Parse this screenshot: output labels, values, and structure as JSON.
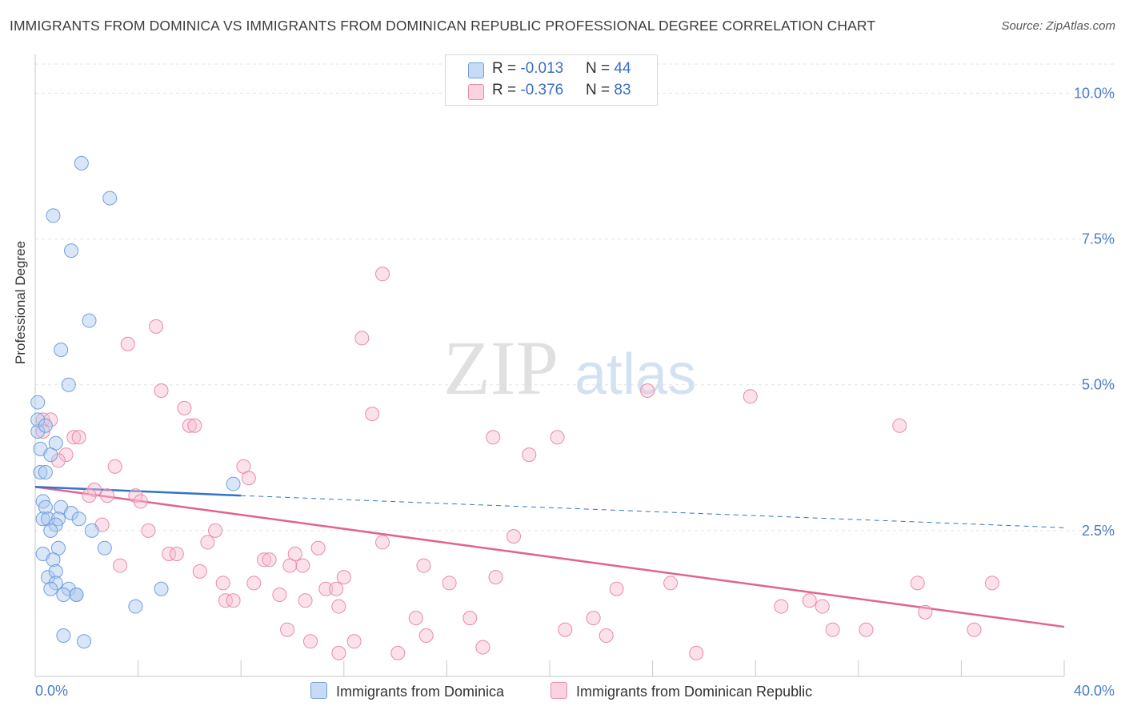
{
  "title": "IMMIGRANTS FROM DOMINICA VS IMMIGRANTS FROM DOMINICAN REPUBLIC PROFESSIONAL DEGREE CORRELATION CHART",
  "source": "Source: ZipAtlas.com",
  "watermark": {
    "zip": "ZIP",
    "atlas": "atlas"
  },
  "colors": {
    "blue_fill": "#aac8f0",
    "blue_stroke": "#6f9fdc",
    "blue_line": "#3472c9",
    "pink_fill": "#f6bfd0",
    "pink_stroke": "#e98aa8",
    "pink_line": "#e2638f",
    "axis_label": "#4a7cc7",
    "grid": "#e4e4e4"
  },
  "legend": {
    "rows": [
      {
        "r_label": "R = ",
        "r_value": "-0.013",
        "n_label": "N = ",
        "n_value": "44"
      },
      {
        "r_label": "R = ",
        "r_value": "-0.376",
        "n_label": "N = ",
        "n_value": "83"
      }
    ]
  },
  "chart_data": {
    "type": "scatter",
    "title": "IMMIGRANTS FROM DOMINICA VS IMMIGRANTS FROM DOMINICAN REPUBLIC PROFESSIONAL DEGREE CORRELATION CHART",
    "xlabel": "",
    "ylabel": "Professional Degree",
    "xlim": [
      0,
      40
    ],
    "ylim": [
      0,
      10.5
    ],
    "x_tick_labels": [
      "0.0%",
      "40.0%"
    ],
    "y_ticks": [
      2.5,
      5.0,
      7.5,
      10.0
    ],
    "y_tick_labels": [
      "2.5%",
      "5.0%",
      "7.5%",
      "10.0%"
    ],
    "grid": true,
    "legend_position": "top-center",
    "series": [
      {
        "name": "Immigrants from Dominica",
        "color": "#aac8f0",
        "points": [
          [
            1.8,
            8.8
          ],
          [
            2.9,
            8.2
          ],
          [
            0.7,
            7.9
          ],
          [
            1.4,
            7.3
          ],
          [
            2.1,
            6.1
          ],
          [
            1.0,
            5.6
          ],
          [
            1.3,
            5.0
          ],
          [
            0.1,
            4.7
          ],
          [
            0.1,
            4.2
          ],
          [
            0.1,
            4.4
          ],
          [
            0.2,
            3.9
          ],
          [
            0.8,
            4.0
          ],
          [
            0.6,
            3.8
          ],
          [
            0.2,
            3.5
          ],
          [
            0.4,
            3.5
          ],
          [
            7.7,
            3.3
          ],
          [
            0.3,
            3.0
          ],
          [
            0.4,
            2.9
          ],
          [
            1.0,
            2.9
          ],
          [
            1.4,
            2.8
          ],
          [
            0.3,
            2.7
          ],
          [
            0.5,
            2.7
          ],
          [
            0.9,
            2.7
          ],
          [
            1.7,
            2.7
          ],
          [
            0.8,
            2.6
          ],
          [
            2.2,
            2.5
          ],
          [
            0.6,
            2.5
          ],
          [
            2.7,
            2.2
          ],
          [
            0.9,
            2.2
          ],
          [
            0.3,
            2.1
          ],
          [
            0.7,
            2.0
          ],
          [
            0.5,
            1.7
          ],
          [
            0.8,
            1.8
          ],
          [
            0.8,
            1.6
          ],
          [
            0.6,
            1.5
          ],
          [
            1.3,
            1.5
          ],
          [
            1.6,
            1.4
          ],
          [
            1.1,
            1.4
          ],
          [
            4.9,
            1.5
          ],
          [
            1.6,
            1.4
          ],
          [
            3.9,
            1.2
          ],
          [
            1.1,
            0.7
          ],
          [
            1.9,
            0.6
          ],
          [
            0.4,
            4.3
          ]
        ]
      },
      {
        "name": "Immigrants from Dominican Republic",
        "color": "#f6bfd0",
        "points": [
          [
            13.5,
            6.9
          ],
          [
            4.7,
            6.0
          ],
          [
            12.7,
            5.8
          ],
          [
            3.6,
            5.7
          ],
          [
            4.9,
            4.9
          ],
          [
            23.8,
            4.9
          ],
          [
            27.8,
            4.8
          ],
          [
            5.8,
            4.6
          ],
          [
            0.3,
            4.4
          ],
          [
            0.6,
            4.4
          ],
          [
            13.1,
            4.5
          ],
          [
            6.0,
            4.3
          ],
          [
            6.2,
            4.3
          ],
          [
            33.6,
            4.3
          ],
          [
            0.3,
            4.2
          ],
          [
            1.5,
            4.1
          ],
          [
            1.7,
            4.1
          ],
          [
            17.8,
            4.1
          ],
          [
            20.3,
            4.1
          ],
          [
            1.2,
            3.8
          ],
          [
            19.2,
            3.8
          ],
          [
            0.9,
            3.7
          ],
          [
            3.1,
            3.6
          ],
          [
            8.1,
            3.6
          ],
          [
            8.3,
            3.4
          ],
          [
            2.3,
            3.2
          ],
          [
            2.1,
            3.1
          ],
          [
            2.8,
            3.1
          ],
          [
            3.9,
            3.1
          ],
          [
            4.1,
            3.0
          ],
          [
            2.6,
            2.6
          ],
          [
            4.4,
            2.5
          ],
          [
            7.0,
            2.5
          ],
          [
            18.6,
            2.4
          ],
          [
            6.7,
            2.3
          ],
          [
            13.5,
            2.3
          ],
          [
            11.0,
            2.2
          ],
          [
            5.2,
            2.1
          ],
          [
            5.5,
            2.1
          ],
          [
            10.1,
            2.1
          ],
          [
            8.9,
            2.0
          ],
          [
            9.1,
            2.0
          ],
          [
            10.4,
            1.9
          ],
          [
            15.1,
            1.9
          ],
          [
            3.3,
            1.9
          ],
          [
            9.9,
            1.9
          ],
          [
            6.4,
            1.8
          ],
          [
            12.0,
            1.7
          ],
          [
            17.9,
            1.7
          ],
          [
            8.5,
            1.6
          ],
          [
            16.1,
            1.6
          ],
          [
            7.3,
            1.6
          ],
          [
            11.3,
            1.5
          ],
          [
            11.7,
            1.5
          ],
          [
            22.6,
            1.5
          ],
          [
            24.7,
            1.6
          ],
          [
            34.3,
            1.6
          ],
          [
            37.2,
            1.6
          ],
          [
            7.4,
            1.3
          ],
          [
            7.7,
            1.3
          ],
          [
            9.5,
            1.4
          ],
          [
            10.5,
            1.3
          ],
          [
            11.8,
            1.2
          ],
          [
            29.0,
            1.2
          ],
          [
            30.6,
            1.2
          ],
          [
            34.6,
            1.1
          ],
          [
            14.8,
            1.0
          ],
          [
            16.9,
            1.0
          ],
          [
            21.7,
            1.0
          ],
          [
            9.8,
            0.8
          ],
          [
            20.6,
            0.8
          ],
          [
            31.0,
            0.8
          ],
          [
            30.1,
            1.3
          ],
          [
            32.3,
            0.8
          ],
          [
            36.5,
            0.8
          ],
          [
            10.7,
            0.6
          ],
          [
            12.4,
            0.6
          ],
          [
            15.2,
            0.7
          ],
          [
            22.2,
            0.7
          ],
          [
            17.4,
            0.5
          ],
          [
            11.8,
            0.4
          ],
          [
            14.1,
            0.4
          ],
          [
            25.7,
            0.4
          ]
        ]
      }
    ],
    "trend_lines": [
      {
        "series": "Immigrants from Dominica",
        "solid": [
          [
            0,
            3.25
          ],
          [
            8.0,
            3.1
          ]
        ],
        "dashed": [
          [
            8.0,
            3.1
          ],
          [
            40.0,
            2.55
          ]
        ]
      },
      {
        "series": "Immigrants from Dominican Republic",
        "solid": [
          [
            0,
            3.25
          ],
          [
            40.0,
            0.85
          ]
        ]
      }
    ]
  }
}
